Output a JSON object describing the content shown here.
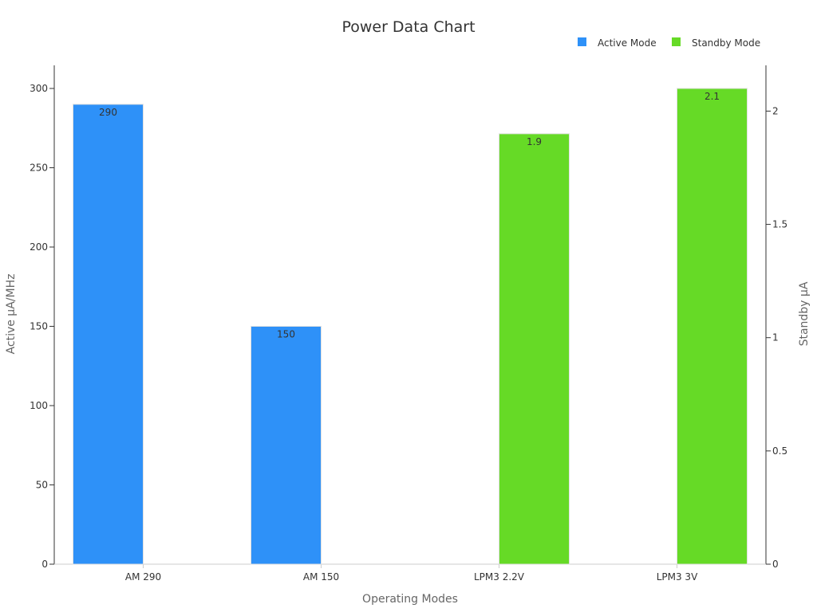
{
  "chart_data": {
    "type": "bar",
    "title": "Power Data Chart",
    "xlabel": "Operating Modes",
    "ylabel_left": "Active µA/MHz",
    "ylabel_right": "Standby µA",
    "categories": [
      "AM 290",
      "AM 150",
      "LPM3 2.2V",
      "LPM3 3V"
    ],
    "series": [
      {
        "name": "Active Mode",
        "axis": "left",
        "color": "#2e91f8",
        "values": [
          290,
          150,
          null,
          null
        ],
        "labels": [
          "290",
          "150",
          "",
          ""
        ]
      },
      {
        "name": "Standby Mode",
        "axis": "right",
        "color": "#66da26",
        "values": [
          null,
          null,
          1.9,
          2.1
        ],
        "labels": [
          "",
          "",
          "1.9",
          "2.1"
        ]
      }
    ],
    "ylim_left": [
      0,
      300
    ],
    "ylim_right": [
      0,
      2.1
    ],
    "yticks_left": [
      "0",
      "50",
      "100",
      "150",
      "200",
      "250",
      "300"
    ],
    "yticks_right": [
      "0",
      "0.5",
      "1",
      "1.5",
      "2"
    ],
    "legend_position": "top-right",
    "grid": false
  }
}
